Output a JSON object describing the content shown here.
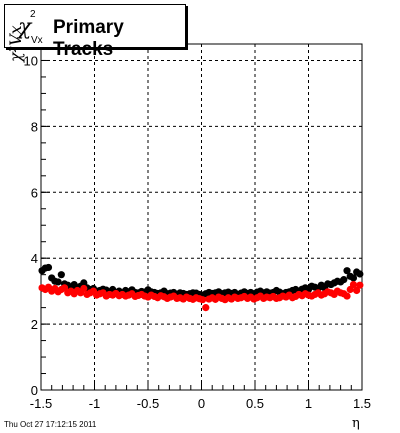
{
  "title": {
    "symbol": "χ",
    "superscript": "2",
    "subscript": "Vx",
    "text": "Primary Tracks"
  },
  "timestamp": "Thu Oct 27 17:12:15 2011",
  "colors": {
    "black_series": "#000000",
    "red_series": "#ff0000",
    "grid": "#000000"
  },
  "chart_data": {
    "type": "scatter",
    "xlabel": "η",
    "ylabel": "χ²Vx",
    "xlim": [
      -1.5,
      1.5
    ],
    "ylim": [
      0,
      10.5
    ],
    "grid": true,
    "xticks": [
      "-1.5",
      "-1",
      "-0.5",
      "0",
      "0.5",
      "1",
      "1.5"
    ],
    "xtick_values": [
      -1.5,
      -1,
      -0.5,
      0,
      0.5,
      1,
      1.5
    ],
    "yticks": [
      "0",
      "2",
      "4",
      "6",
      "8",
      "10"
    ],
    "ytick_values": [
      0,
      2,
      4,
      6,
      8,
      10
    ],
    "series": [
      {
        "color": "#000000",
        "x": [
          -1.49,
          -1.46,
          -1.43,
          -1.4,
          -1.37,
          -1.34,
          -1.31,
          -1.28,
          -1.25,
          -1.22,
          -1.19,
          -1.16,
          -1.13,
          -1.1,
          -1.07,
          -1.04,
          -1.01,
          -0.98,
          -0.95,
          -0.92,
          -0.89,
          -0.86,
          -0.83,
          -0.8,
          -0.77,
          -0.74,
          -0.71,
          -0.68,
          -0.65,
          -0.62,
          -0.59,
          -0.56,
          -0.53,
          -0.5,
          -0.47,
          -0.44,
          -0.41,
          -0.38,
          -0.35,
          -0.32,
          -0.29,
          -0.26,
          -0.23,
          -0.2,
          -0.17,
          -0.14,
          -0.11,
          -0.08,
          -0.05,
          -0.02,
          0.01,
          0.04,
          0.07,
          0.1,
          0.13,
          0.16,
          0.19,
          0.22,
          0.25,
          0.28,
          0.31,
          0.34,
          0.37,
          0.4,
          0.43,
          0.46,
          0.49,
          0.52,
          0.55,
          0.58,
          0.61,
          0.64,
          0.67,
          0.7,
          0.73,
          0.76,
          0.79,
          0.82,
          0.85,
          0.88,
          0.91,
          0.94,
          0.97,
          1.0,
          1.03,
          1.06,
          1.09,
          1.12,
          1.15,
          1.18,
          1.21,
          1.24,
          1.27,
          1.3,
          1.33,
          1.36,
          1.39,
          1.42,
          1.45,
          1.48
        ],
        "y": [
          3.62,
          3.7,
          3.72,
          3.4,
          3.3,
          3.28,
          3.5,
          3.22,
          3.18,
          3.12,
          3.2,
          3.08,
          3.15,
          3.25,
          3.1,
          3.05,
          3.08,
          3.0,
          3.02,
          3.06,
          3.03,
          2.98,
          3.05,
          2.96,
          3.0,
          2.95,
          3.02,
          2.98,
          3.04,
          2.96,
          2.95,
          2.99,
          2.97,
          3.04,
          2.98,
          2.96,
          2.93,
          2.95,
          3.0,
          2.92,
          2.94,
          2.96,
          2.9,
          2.95,
          2.93,
          2.9,
          2.92,
          2.95,
          2.94,
          2.9,
          2.88,
          2.92,
          2.96,
          2.93,
          2.95,
          2.98,
          2.92,
          2.95,
          2.97,
          2.93,
          2.96,
          2.9,
          2.94,
          2.98,
          2.93,
          2.96,
          2.92,
          2.97,
          3.0,
          2.95,
          2.98,
          2.94,
          2.96,
          3.02,
          2.97,
          2.92,
          2.96,
          2.98,
          3.02,
          3.05,
          3.0,
          3.06,
          3.1,
          3.05,
          3.15,
          3.12,
          3.08,
          3.18,
          3.1,
          3.22,
          3.2,
          3.25,
          3.3,
          3.28,
          3.35,
          3.62,
          3.45,
          3.4,
          3.58,
          3.52
        ]
      },
      {
        "color": "#ff0000",
        "x": [
          -1.49,
          -1.46,
          -1.43,
          -1.4,
          -1.37,
          -1.34,
          -1.31,
          -1.28,
          -1.25,
          -1.22,
          -1.19,
          -1.16,
          -1.13,
          -1.1,
          -1.07,
          -1.04,
          -1.01,
          -0.98,
          -0.95,
          -0.92,
          -0.89,
          -0.86,
          -0.83,
          -0.8,
          -0.77,
          -0.74,
          -0.71,
          -0.68,
          -0.65,
          -0.62,
          -0.59,
          -0.56,
          -0.53,
          -0.5,
          -0.47,
          -0.44,
          -0.41,
          -0.38,
          -0.35,
          -0.32,
          -0.29,
          -0.26,
          -0.23,
          -0.2,
          -0.17,
          -0.14,
          -0.11,
          -0.08,
          -0.05,
          -0.02,
          0.01,
          0.04,
          0.07,
          0.1,
          0.13,
          0.16,
          0.19,
          0.22,
          0.25,
          0.28,
          0.31,
          0.34,
          0.37,
          0.4,
          0.43,
          0.46,
          0.49,
          0.52,
          0.55,
          0.58,
          0.61,
          0.64,
          0.67,
          0.7,
          0.73,
          0.76,
          0.79,
          0.82,
          0.85,
          0.88,
          0.91,
          0.94,
          0.97,
          1.0,
          1.03,
          1.06,
          1.09,
          1.12,
          1.15,
          1.18,
          1.21,
          1.24,
          1.27,
          1.3,
          1.33,
          1.36,
          1.39,
          1.42,
          1.45,
          1.48
        ],
        "y": [
          3.1,
          3.05,
          3.12,
          3.0,
          3.08,
          2.98,
          3.05,
          3.1,
          2.95,
          3.0,
          2.92,
          3.02,
          2.95,
          3.08,
          2.9,
          2.95,
          3.0,
          2.88,
          2.92,
          2.95,
          2.85,
          2.9,
          2.88,
          2.93,
          2.86,
          2.9,
          2.85,
          2.88,
          2.92,
          2.84,
          2.87,
          2.9,
          2.85,
          2.82,
          2.88,
          2.84,
          2.8,
          2.86,
          2.83,
          2.78,
          2.82,
          2.85,
          2.78,
          2.8,
          2.76,
          2.82,
          2.78,
          2.75,
          2.8,
          2.77,
          2.74,
          2.5,
          2.76,
          2.8,
          2.75,
          2.82,
          2.78,
          2.74,
          2.8,
          2.76,
          2.82,
          2.78,
          2.8,
          2.84,
          2.78,
          2.82,
          2.76,
          2.8,
          2.85,
          2.78,
          2.82,
          2.8,
          2.84,
          2.78,
          2.8,
          2.85,
          2.82,
          2.88,
          2.8,
          2.84,
          2.9,
          2.86,
          2.92,
          2.88,
          2.85,
          2.9,
          2.95,
          2.88,
          2.92,
          2.98,
          2.95,
          2.9,
          3.0,
          2.95,
          2.92,
          2.85,
          3.05,
          3.2,
          3.02,
          3.18
        ]
      }
    ]
  }
}
